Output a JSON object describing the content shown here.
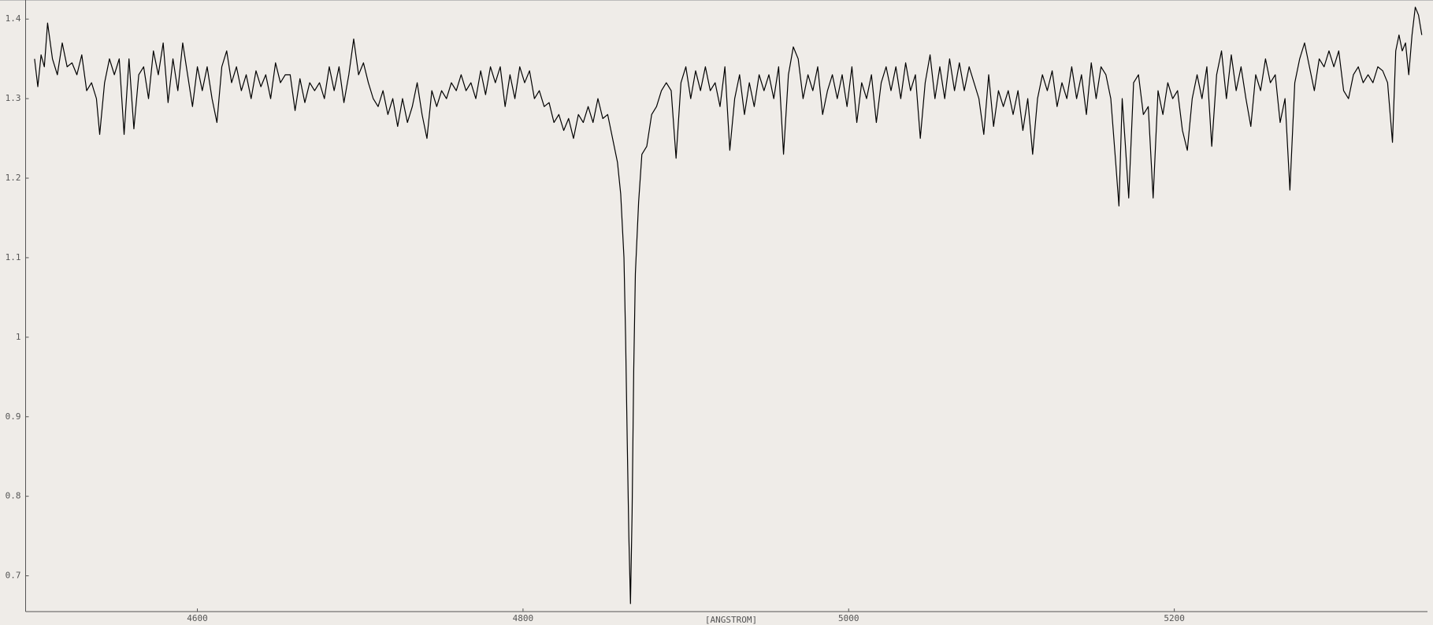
{
  "chart_data": {
    "type": "line",
    "xlabel": "[ANGSTROM]",
    "color": "#000000",
    "x": [
      4500,
      4502,
      4504,
      4506,
      4508,
      4511,
      4514,
      4517,
      4520,
      4523,
      4526,
      4529,
      4532,
      4535,
      4538,
      4540,
      4543,
      4546,
      4549,
      4552,
      4555,
      4558,
      4561,
      4564,
      4567,
      4570,
      4573,
      4576,
      4579,
      4582,
      4585,
      4588,
      4591,
      4594,
      4597,
      4600,
      4603,
      4606,
      4609,
      4612,
      4615,
      4618,
      4621,
      4624,
      4627,
      4630,
      4633,
      4636,
      4639,
      4642,
      4645,
      4648,
      4651,
      4654,
      4657,
      4660,
      4663,
      4666,
      4669,
      4672,
      4675,
      4678,
      4681,
      4684,
      4687,
      4690,
      4693,
      4696,
      4699,
      4702,
      4705,
      4708,
      4711,
      4714,
      4717,
      4720,
      4723,
      4726,
      4729,
      4732,
      4735,
      4738,
      4741,
      4744,
      4747,
      4750,
      4753,
      4756,
      4759,
      4762,
      4765,
      4768,
      4771,
      4774,
      4777,
      4780,
      4783,
      4786,
      4789,
      4792,
      4795,
      4798,
      4801,
      4804,
      4807,
      4810,
      4813,
      4816,
      4819,
      4822,
      4825,
      4828,
      4831,
      4834,
      4837,
      4840,
      4843,
      4846,
      4849,
      4852,
      4855,
      4858,
      4860,
      4862,
      4863,
      4864,
      4865,
      4866,
      4867,
      4868,
      4869,
      4871,
      4873,
      4876,
      4879,
      4882,
      4885,
      4888,
      4891,
      4894,
      4897,
      4900,
      4903,
      4906,
      4909,
      4912,
      4915,
      4918,
      4921,
      4924,
      4927,
      4930,
      4933,
      4936,
      4939,
      4942,
      4945,
      4948,
      4951,
      4954,
      4957,
      4960,
      4963,
      4966,
      4969,
      4972,
      4975,
      4978,
      4981,
      4984,
      4987,
      4990,
      4993,
      4996,
      4999,
      5002,
      5005,
      5008,
      5011,
      5014,
      5017,
      5020,
      5023,
      5026,
      5029,
      5032,
      5035,
      5038,
      5041,
      5044,
      5047,
      5050,
      5053,
      5056,
      5059,
      5062,
      5065,
      5068,
      5071,
      5074,
      5077,
      5080,
      5083,
      5086,
      5089,
      5092,
      5095,
      5098,
      5101,
      5104,
      5107,
      5110,
      5113,
      5116,
      5119,
      5122,
      5125,
      5128,
      5131,
      5134,
      5137,
      5140,
      5143,
      5146,
      5149,
      5152,
      5155,
      5158,
      5161,
      5164,
      5166,
      5168,
      5170,
      5172,
      5175,
      5178,
      5181,
      5184,
      5187,
      5190,
      5193,
      5196,
      5199,
      5202,
      5205,
      5208,
      5211,
      5214,
      5217,
      5220,
      5223,
      5226,
      5229,
      5232,
      5235,
      5238,
      5241,
      5244,
      5247,
      5250,
      5253,
      5256,
      5259,
      5262,
      5265,
      5268,
      5271,
      5274,
      5277,
      5280,
      5283,
      5286,
      5289,
      5292,
      5295,
      5298,
      5301,
      5304,
      5307,
      5310,
      5313,
      5316,
      5319,
      5322,
      5325,
      5328,
      5331,
      5334,
      5336,
      5338,
      5340,
      5342,
      5344,
      5346,
      5348,
      5350,
      5352
    ],
    "values": [
      1.35,
      1.315,
      1.355,
      1.34,
      1.395,
      1.35,
      1.33,
      1.37,
      1.34,
      1.345,
      1.33,
      1.355,
      1.31,
      1.32,
      1.3,
      1.255,
      1.32,
      1.35,
      1.33,
      1.35,
      1.255,
      1.35,
      1.262,
      1.33,
      1.34,
      1.3,
      1.36,
      1.33,
      1.37,
      1.295,
      1.35,
      1.31,
      1.37,
      1.33,
      1.29,
      1.34,
      1.31,
      1.34,
      1.3,
      1.27,
      1.34,
      1.36,
      1.32,
      1.34,
      1.31,
      1.33,
      1.3,
      1.335,
      1.315,
      1.33,
      1.3,
      1.345,
      1.32,
      1.33,
      1.33,
      1.285,
      1.325,
      1.295,
      1.32,
      1.31,
      1.32,
      1.3,
      1.34,
      1.31,
      1.34,
      1.295,
      1.33,
      1.375,
      1.33,
      1.345,
      1.32,
      1.3,
      1.29,
      1.31,
      1.28,
      1.3,
      1.265,
      1.3,
      1.27,
      1.29,
      1.32,
      1.28,
      1.25,
      1.31,
      1.29,
      1.31,
      1.3,
      1.32,
      1.31,
      1.33,
      1.31,
      1.32,
      1.3,
      1.335,
      1.305,
      1.34,
      1.32,
      1.34,
      1.29,
      1.33,
      1.3,
      1.34,
      1.32,
      1.335,
      1.3,
      1.31,
      1.29,
      1.295,
      1.27,
      1.28,
      1.26,
      1.275,
      1.25,
      1.28,
      1.27,
      1.29,
      1.27,
      1.3,
      1.275,
      1.28,
      1.25,
      1.22,
      1.18,
      1.1,
      1.0,
      0.87,
      0.75,
      0.665,
      0.78,
      0.96,
      1.08,
      1.17,
      1.23,
      1.24,
      1.28,
      1.29,
      1.31,
      1.32,
      1.31,
      1.225,
      1.32,
      1.34,
      1.3,
      1.335,
      1.31,
      1.34,
      1.31,
      1.32,
      1.29,
      1.34,
      1.235,
      1.3,
      1.33,
      1.28,
      1.32,
      1.29,
      1.33,
      1.31,
      1.33,
      1.3,
      1.34,
      1.23,
      1.33,
      1.365,
      1.35,
      1.3,
      1.33,
      1.31,
      1.34,
      1.28,
      1.31,
      1.33,
      1.3,
      1.33,
      1.29,
      1.34,
      1.27,
      1.32,
      1.3,
      1.33,
      1.27,
      1.32,
      1.34,
      1.31,
      1.34,
      1.3,
      1.345,
      1.31,
      1.33,
      1.25,
      1.32,
      1.355,
      1.3,
      1.34,
      1.3,
      1.35,
      1.31,
      1.345,
      1.31,
      1.34,
      1.32,
      1.3,
      1.255,
      1.33,
      1.265,
      1.31,
      1.29,
      1.31,
      1.28,
      1.31,
      1.26,
      1.3,
      1.23,
      1.3,
      1.33,
      1.31,
      1.335,
      1.29,
      1.32,
      1.3,
      1.34,
      1.3,
      1.33,
      1.28,
      1.345,
      1.3,
      1.34,
      1.33,
      1.3,
      1.22,
      1.165,
      1.3,
      1.24,
      1.175,
      1.32,
      1.33,
      1.28,
      1.29,
      1.175,
      1.31,
      1.28,
      1.32,
      1.3,
      1.31,
      1.26,
      1.235,
      1.3,
      1.33,
      1.3,
      1.34,
      1.24,
      1.33,
      1.36,
      1.3,
      1.355,
      1.31,
      1.34,
      1.3,
      1.265,
      1.33,
      1.31,
      1.35,
      1.32,
      1.33,
      1.27,
      1.3,
      1.185,
      1.32,
      1.35,
      1.37,
      1.34,
      1.31,
      1.35,
      1.34,
      1.36,
      1.34,
      1.36,
      1.31,
      1.3,
      1.33,
      1.34,
      1.32,
      1.33,
      1.32,
      1.34,
      1.335,
      1.32,
      1.245,
      1.36,
      1.38,
      1.36,
      1.37,
      1.33,
      1.38,
      1.415,
      1.405,
      1.38
    ],
    "xlim": [
      4494.5,
      5355.5
    ],
    "ylim": [
      0.655,
      1.424
    ],
    "xticks": [
      4600,
      4800,
      5000,
      5200
    ],
    "yticks": [
      0.7,
      0.8,
      0.9,
      1,
      1.1,
      1.2,
      1.3,
      1.4
    ]
  }
}
